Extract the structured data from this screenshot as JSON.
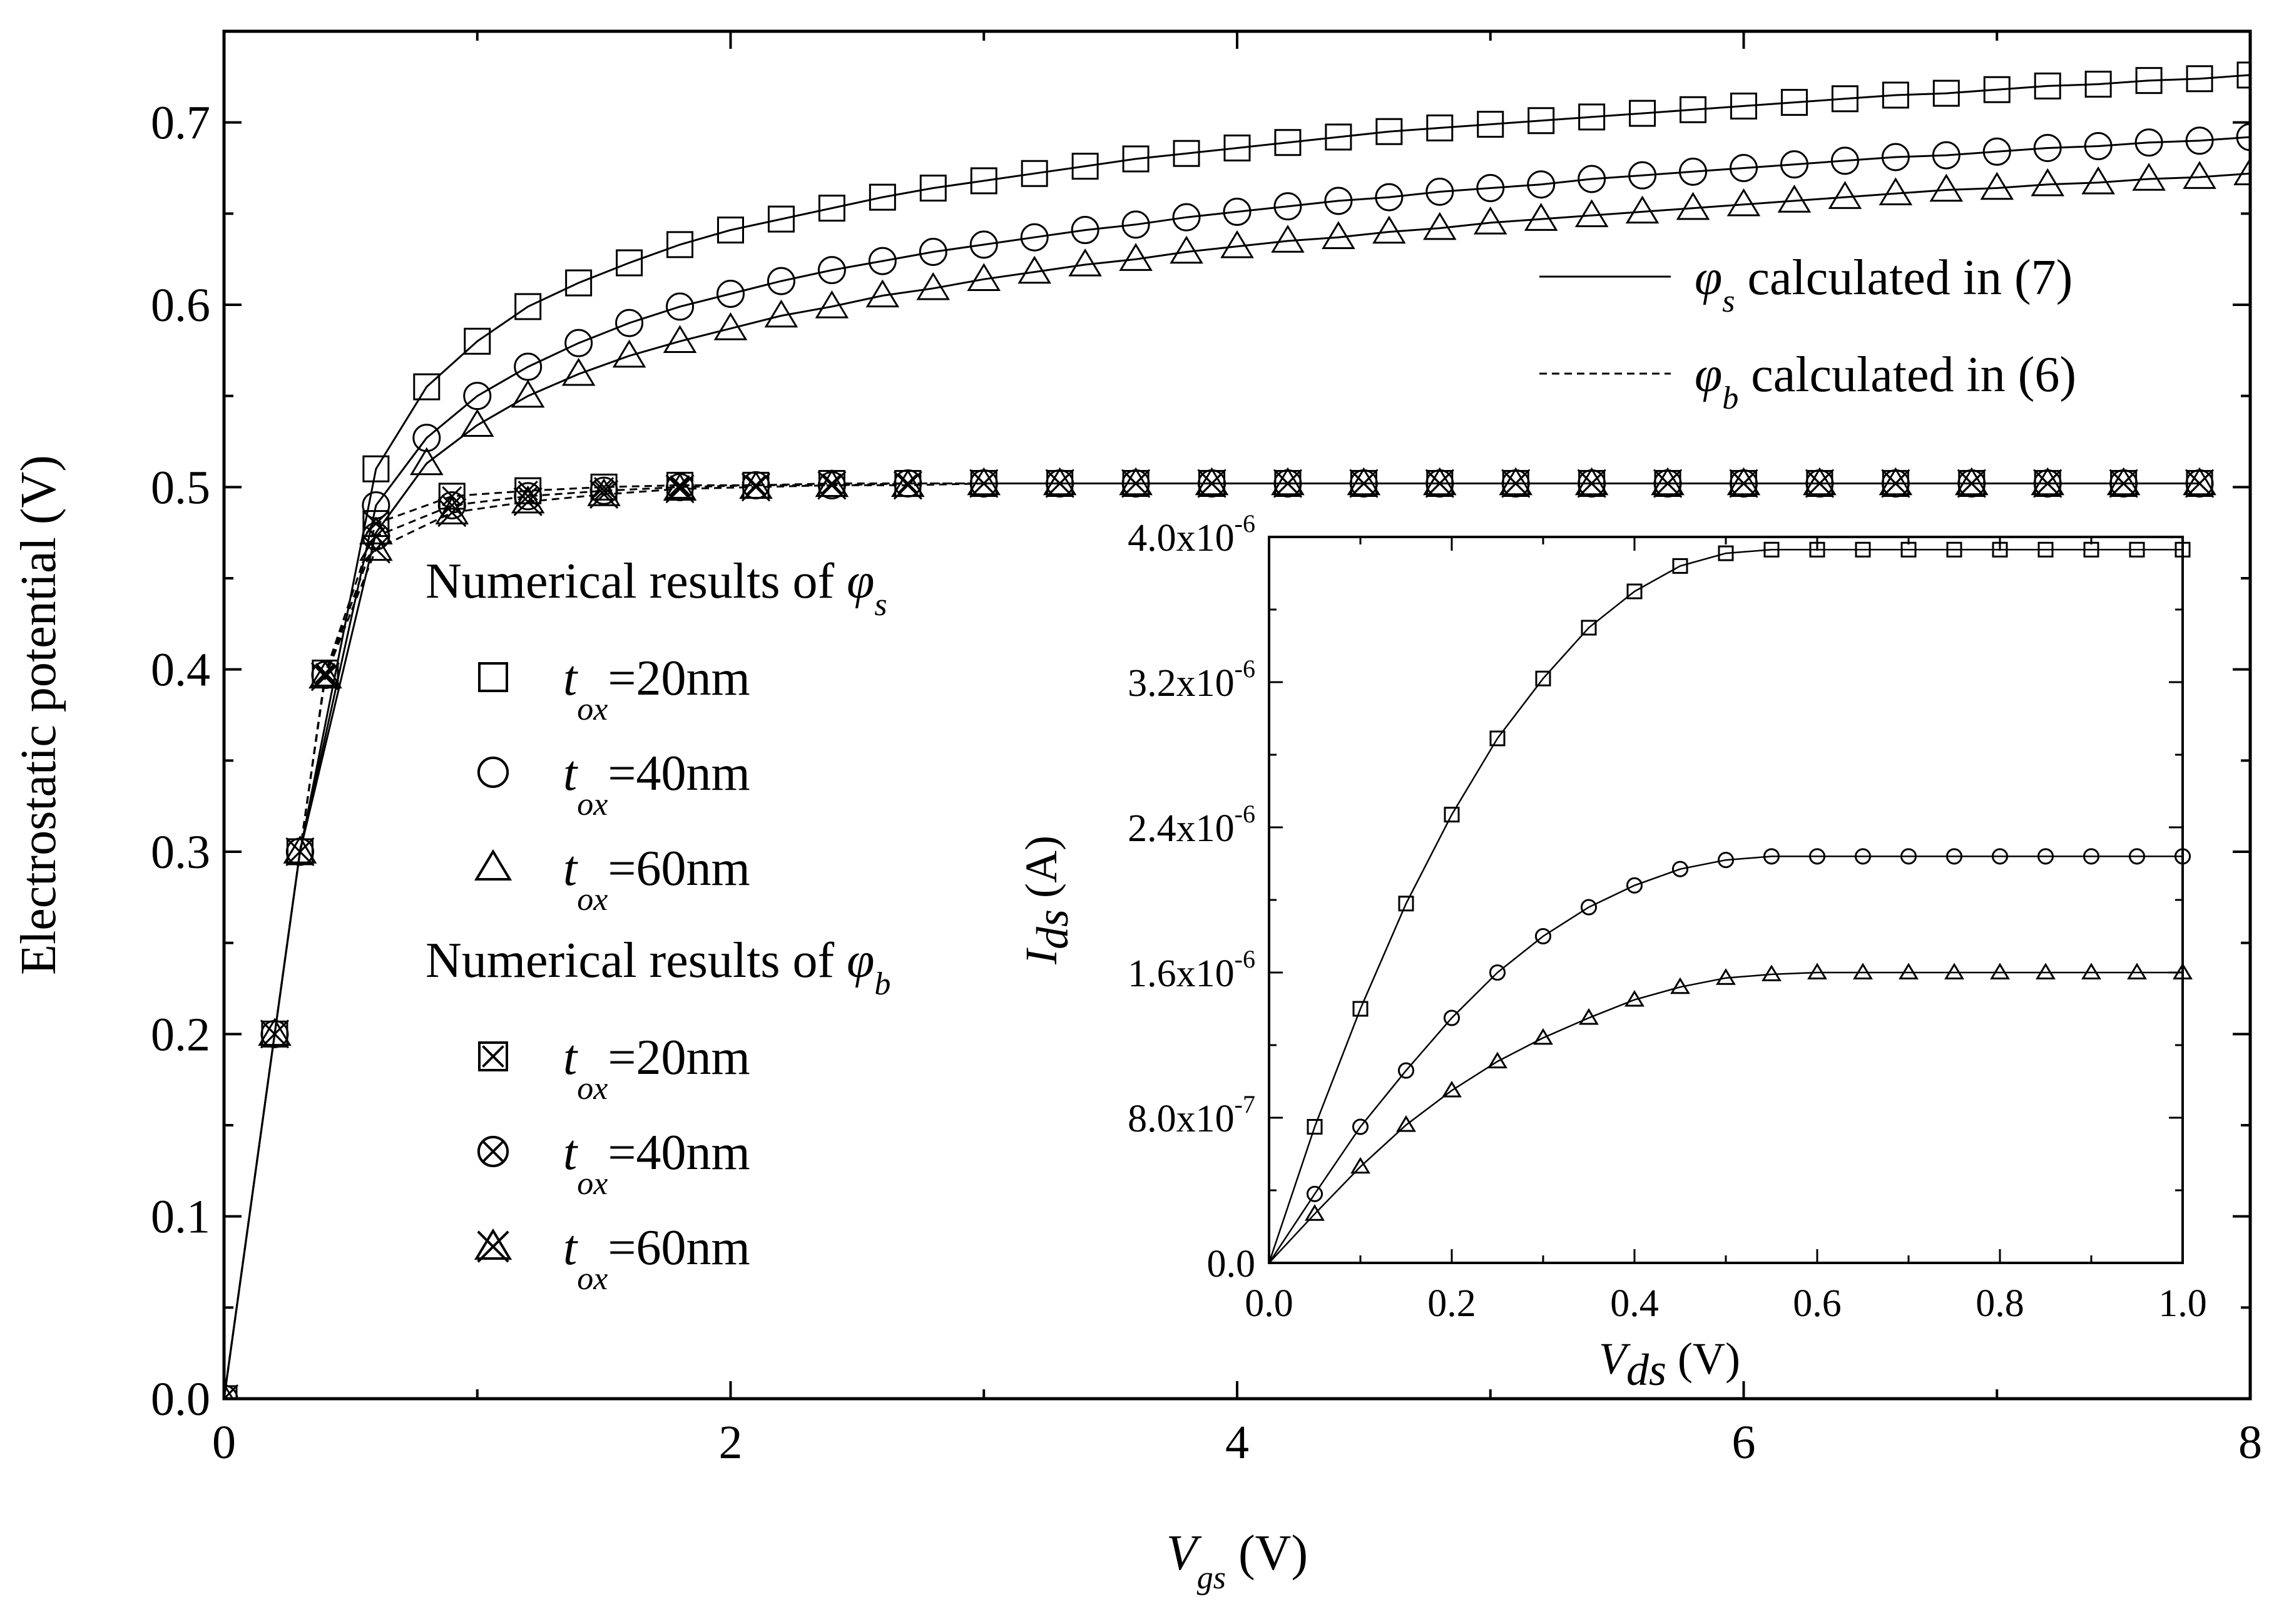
{
  "chart_data": [
    {
      "id": "main",
      "type": "line",
      "title": "",
      "xlabel_symbol": "V",
      "xlabel_sub": "gs",
      "xlabel_unit": "(V)",
      "ylabel": "Electrostatic potential (V)",
      "xlim": [
        0,
        8
      ],
      "ylim": [
        0,
        0.75
      ],
      "x_ticks": [
        0,
        2,
        4,
        6,
        8
      ],
      "x_tick_labels": [
        "0",
        "2",
        "4",
        "6",
        "8"
      ],
      "y_ticks": [
        0,
        0.1,
        0.2,
        0.3,
        0.4,
        0.5,
        0.6,
        0.7
      ],
      "y_tick_labels": [
        "0.0",
        "0.1",
        "0.2",
        "0.3",
        "0.4",
        "0.5",
        "0.6",
        "0.7"
      ],
      "line_legend": [
        {
          "style": "solid",
          "symbol": "φ",
          "sub": "s",
          "text": "calculated in (7)"
        },
        {
          "style": "dashed",
          "symbol": "φ",
          "sub": "b",
          "text": "calculated in (6)"
        }
      ],
      "marker_legend_groups": [
        {
          "heading": "Numerical results of",
          "symbol": "φ",
          "sub": "s",
          "items": [
            {
              "marker": "square",
              "var": "t",
              "sub": "ox",
              "value": "=20nm"
            },
            {
              "marker": "circle",
              "var": "t",
              "sub": "ox",
              "value": "=40nm"
            },
            {
              "marker": "triangle",
              "var": "t",
              "sub": "ox",
              "value": "=60nm"
            }
          ]
        },
        {
          "heading": "Numerical results of",
          "symbol": "φ",
          "sub": "b",
          "items": [
            {
              "marker": "square-x",
              "var": "t",
              "sub": "ox",
              "value": "=20nm"
            },
            {
              "marker": "circle-x",
              "var": "t",
              "sub": "ox",
              "value": "=40nm"
            },
            {
              "marker": "triangle-x",
              "var": "t",
              "sub": "ox",
              "value": "=60nm"
            }
          ]
        }
      ],
      "series": [
        {
          "name": "phi_s tox=20nm",
          "marker": "square",
          "style": "solid",
          "x": [
            0.3,
            0.6,
            0.8,
            1.0,
            1.2,
            1.4,
            1.6,
            1.8,
            2.0,
            2.2,
            2.4,
            2.6,
            2.8,
            3.0,
            3.2,
            3.4,
            3.6,
            3.8,
            4.0,
            4.2,
            4.4,
            4.6,
            4.8,
            5.0,
            5.2,
            5.4,
            5.6,
            5.8,
            6.0,
            6.2,
            6.4,
            6.6,
            6.8,
            7.0,
            7.2,
            7.4,
            7.6,
            7.8,
            8.0
          ],
          "y": [
            0.3,
            0.51,
            0.555,
            0.58,
            0.599,
            0.612,
            0.623,
            0.633,
            0.641,
            0.647,
            0.653,
            0.659,
            0.664,
            0.668,
            0.672,
            0.676,
            0.68,
            0.683,
            0.686,
            0.689,
            0.692,
            0.695,
            0.697,
            0.699,
            0.701,
            0.703,
            0.705,
            0.707,
            0.709,
            0.711,
            0.713,
            0.715,
            0.716,
            0.718,
            0.72,
            0.721,
            0.723,
            0.724,
            0.726
          ]
        },
        {
          "name": "phi_s tox=40nm",
          "marker": "circle",
          "style": "solid",
          "x": [
            0.3,
            0.6,
            0.8,
            1.0,
            1.2,
            1.4,
            1.6,
            1.8,
            2.0,
            2.2,
            2.4,
            2.6,
            2.8,
            3.0,
            3.2,
            3.4,
            3.6,
            3.8,
            4.0,
            4.2,
            4.4,
            4.6,
            4.8,
            5.0,
            5.2,
            5.4,
            5.6,
            5.8,
            6.0,
            6.2,
            6.4,
            6.6,
            6.8,
            7.0,
            7.2,
            7.4,
            7.6,
            7.8,
            8.0
          ],
          "y": [
            0.3,
            0.49,
            0.527,
            0.55,
            0.566,
            0.579,
            0.59,
            0.599,
            0.606,
            0.613,
            0.619,
            0.624,
            0.629,
            0.633,
            0.637,
            0.641,
            0.644,
            0.648,
            0.651,
            0.654,
            0.657,
            0.659,
            0.662,
            0.664,
            0.666,
            0.669,
            0.671,
            0.673,
            0.675,
            0.677,
            0.679,
            0.681,
            0.682,
            0.684,
            0.686,
            0.687,
            0.689,
            0.69,
            0.692
          ]
        },
        {
          "name": "phi_s tox=60nm",
          "marker": "triangle",
          "style": "solid",
          "x": [
            0.3,
            0.6,
            0.8,
            1.0,
            1.2,
            1.4,
            1.6,
            1.8,
            2.0,
            2.2,
            2.4,
            2.6,
            2.8,
            3.0,
            3.2,
            3.4,
            3.6,
            3.8,
            4.0,
            4.2,
            4.4,
            4.6,
            4.8,
            5.0,
            5.2,
            5.4,
            5.6,
            5.8,
            6.0,
            6.2,
            6.4,
            6.6,
            6.8,
            7.0,
            7.2,
            7.4,
            7.6,
            7.8,
            8.0
          ],
          "y": [
            0.3,
            0.475,
            0.513,
            0.534,
            0.55,
            0.562,
            0.572,
            0.58,
            0.587,
            0.594,
            0.599,
            0.605,
            0.609,
            0.614,
            0.618,
            0.622,
            0.625,
            0.629,
            0.632,
            0.635,
            0.637,
            0.64,
            0.642,
            0.645,
            0.647,
            0.649,
            0.651,
            0.653,
            0.655,
            0.657,
            0.659,
            0.661,
            0.663,
            0.664,
            0.666,
            0.667,
            0.669,
            0.67,
            0.672
          ]
        },
        {
          "name": "phi_b tox=20nm",
          "marker": "square-x",
          "style": "dashed",
          "x": [
            0.0,
            0.2,
            0.3,
            0.4,
            0.6,
            0.9,
            1.2,
            1.5,
            1.8,
            2.1,
            2.4,
            2.7,
            3.0,
            3.3,
            3.6,
            3.9,
            4.2,
            4.5,
            4.8,
            5.1,
            5.4,
            5.7,
            6.0,
            6.3,
            6.6,
            6.9,
            7.2,
            7.5,
            7.8
          ],
          "y": [
            0.0,
            0.2,
            0.3,
            0.398,
            0.48,
            0.495,
            0.498,
            0.5,
            0.501,
            0.501,
            0.502,
            0.502,
            0.502,
            0.502,
            0.502,
            0.502,
            0.502,
            0.502,
            0.502,
            0.502,
            0.502,
            0.502,
            0.502,
            0.502,
            0.502,
            0.502,
            0.502,
            0.502,
            0.502
          ]
        },
        {
          "name": "phi_b tox=40nm",
          "marker": "circle-x",
          "style": "dashed",
          "x": [
            0.0,
            0.2,
            0.3,
            0.4,
            0.6,
            0.9,
            1.2,
            1.5,
            1.8,
            2.1,
            2.4,
            2.7,
            3.0,
            3.3,
            3.6,
            3.9,
            4.2,
            4.5,
            4.8,
            5.1,
            5.4,
            5.7,
            6.0,
            6.3,
            6.6,
            6.9,
            7.2,
            7.5,
            7.8
          ],
          "y": [
            0.0,
            0.2,
            0.3,
            0.397,
            0.473,
            0.49,
            0.495,
            0.498,
            0.5,
            0.501,
            0.501,
            0.502,
            0.502,
            0.502,
            0.502,
            0.502,
            0.502,
            0.502,
            0.502,
            0.502,
            0.502,
            0.502,
            0.502,
            0.502,
            0.502,
            0.502,
            0.502,
            0.502,
            0.502
          ]
        },
        {
          "name": "phi_b tox=60nm",
          "marker": "triangle-x",
          "style": "dashed",
          "x": [
            0.0,
            0.2,
            0.3,
            0.4,
            0.6,
            0.9,
            1.2,
            1.5,
            1.8,
            2.1,
            2.4,
            2.7,
            3.0,
            3.3,
            3.6,
            3.9,
            4.2,
            4.5,
            4.8,
            5.1,
            5.4,
            5.7,
            6.0,
            6.3,
            6.6,
            6.9,
            7.2,
            7.5,
            7.8
          ],
          "y": [
            0.0,
            0.2,
            0.3,
            0.396,
            0.466,
            0.486,
            0.492,
            0.496,
            0.499,
            0.5,
            0.501,
            0.501,
            0.502,
            0.502,
            0.502,
            0.502,
            0.502,
            0.502,
            0.502,
            0.502,
            0.502,
            0.502,
            0.502,
            0.502,
            0.502,
            0.502,
            0.502,
            0.502,
            0.502
          ]
        }
      ]
    },
    {
      "id": "inset",
      "type": "line",
      "title": "",
      "xlabel_symbol": "V",
      "xlabel_sub": "ds",
      "xlabel_unit": "(V)",
      "ylabel_symbol": "I",
      "ylabel_sub": "ds",
      "ylabel_unit": "(A)",
      "xlim": [
        0,
        1.0
      ],
      "ylim": [
        0,
        4e-06
      ],
      "x_ticks": [
        0,
        0.2,
        0.4,
        0.6,
        0.8,
        1.0
      ],
      "x_tick_labels": [
        "0.0",
        "0.2",
        "0.4",
        "0.6",
        "0.8",
        "1.0"
      ],
      "y_ticks": [
        0,
        8e-07,
        1.6e-06,
        2.4e-06,
        3.2e-06,
        4e-06
      ],
      "y_tick_labels": [
        {
          "mant": "0.0",
          "exp": ""
        },
        {
          "mant": "8.0x10",
          "exp": "-7"
        },
        {
          "mant": "1.6x10",
          "exp": "-6"
        },
        {
          "mant": "2.4x10",
          "exp": "-6"
        },
        {
          "mant": "3.2x10",
          "exp": "-6"
        },
        {
          "mant": "4.0x10",
          "exp": "-6"
        }
      ],
      "series": [
        {
          "name": "tox=20nm",
          "marker": "square",
          "x": [
            0.05,
            0.1,
            0.15,
            0.2,
            0.25,
            0.3,
            0.35,
            0.4,
            0.45,
            0.5,
            0.55,
            0.6,
            0.65,
            0.7,
            0.75,
            0.8,
            0.85,
            0.9,
            0.95,
            1.0
          ],
          "y": [
            7.5e-07,
            1.4e-06,
            1.98e-06,
            2.47e-06,
            2.89e-06,
            3.22e-06,
            3.5e-06,
            3.7e-06,
            3.84e-06,
            3.91e-06,
            3.93e-06,
            3.93e-06,
            3.93e-06,
            3.93e-06,
            3.93e-06,
            3.93e-06,
            3.93e-06,
            3.93e-06,
            3.93e-06,
            3.93e-06
          ]
        },
        {
          "name": "tox=40nm",
          "marker": "circle",
          "x": [
            0.05,
            0.1,
            0.15,
            0.2,
            0.25,
            0.3,
            0.35,
            0.4,
            0.45,
            0.5,
            0.55,
            0.6,
            0.65,
            0.7,
            0.75,
            0.8,
            0.85,
            0.9,
            0.95,
            1.0
          ],
          "y": [
            3.8e-07,
            7.5e-07,
            1.06e-06,
            1.35e-06,
            1.6e-06,
            1.8e-06,
            1.96e-06,
            2.08e-06,
            2.17e-06,
            2.22e-06,
            2.24e-06,
            2.24e-06,
            2.24e-06,
            2.24e-06,
            2.24e-06,
            2.24e-06,
            2.24e-06,
            2.24e-06,
            2.24e-06,
            2.24e-06
          ]
        },
        {
          "name": "tox=60nm",
          "marker": "triangle",
          "x": [
            0.05,
            0.1,
            0.15,
            0.2,
            0.25,
            0.3,
            0.35,
            0.4,
            0.45,
            0.5,
            0.55,
            0.6,
            0.65,
            0.7,
            0.75,
            0.8,
            0.85,
            0.9,
            0.95,
            1.0
          ],
          "y": [
            2.7e-07,
            5.3e-07,
            7.6e-07,
            9.5e-07,
            1.11e-06,
            1.24e-06,
            1.35e-06,
            1.45e-06,
            1.52e-06,
            1.57e-06,
            1.59e-06,
            1.6e-06,
            1.6e-06,
            1.6e-06,
            1.6e-06,
            1.6e-06,
            1.6e-06,
            1.6e-06,
            1.6e-06,
            1.6e-06
          ]
        }
      ]
    }
  ]
}
